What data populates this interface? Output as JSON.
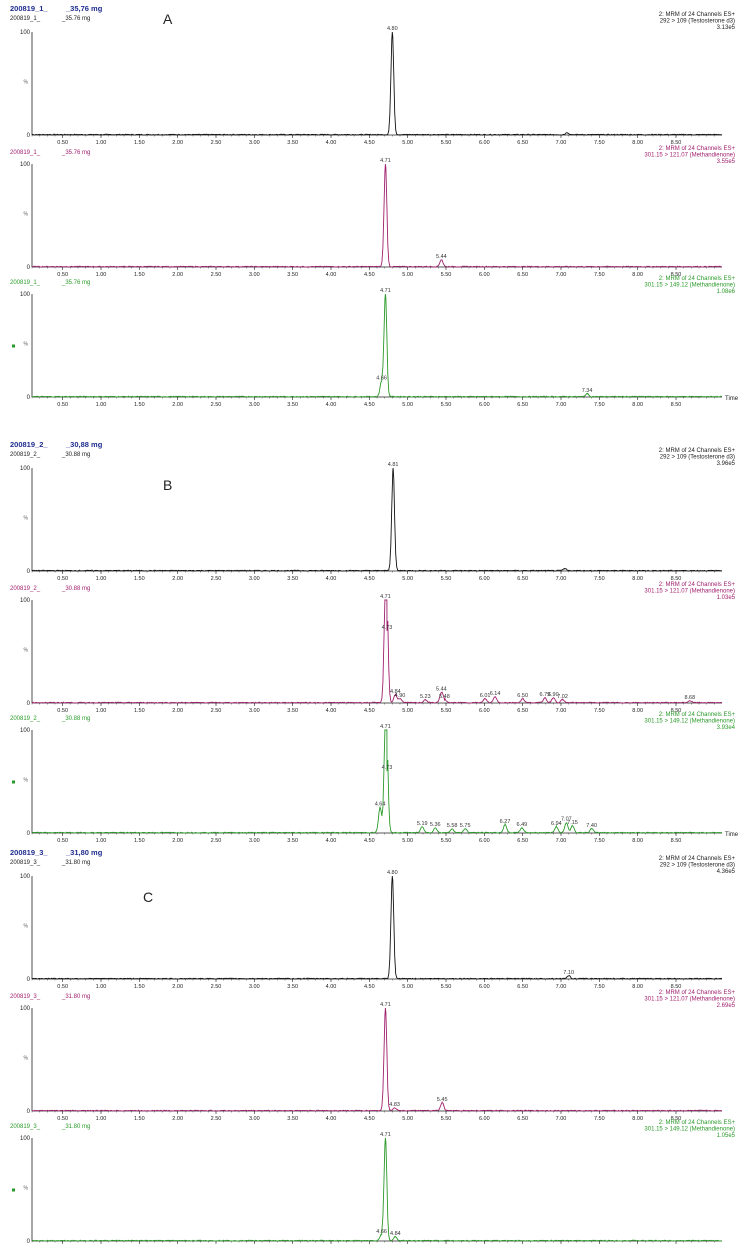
{
  "colors": {
    "black": "#111111",
    "magenta": "#a0206e",
    "green": "#2a9a2a",
    "title_blue": "#1f2d8f",
    "axis": "#222222"
  },
  "chart_data": [
    {
      "type": "line",
      "panel": "A",
      "sample": "200819_1_",
      "sample_mass": "_35,76 mg",
      "x_ticks": [
        "0.50",
        "1.00",
        "1.50",
        "2.00",
        "2.50",
        "3.00",
        "3.50",
        "4.00",
        "4.50",
        "5.00",
        "5.50",
        "6.00",
        "6.50",
        "7.00",
        "7.50",
        "8.00",
        "8.50"
      ],
      "xlim": [
        0.1,
        9.1
      ],
      "ylim": [
        0,
        100
      ],
      "xlabel": "Time",
      "traces": [
        {
          "header_left": "200819_1_",
          "header_mass": "_35.76 mg",
          "info": [
            "2: MRM of 24 Channels ES+",
            "292 > 109 (Testosterone d3)",
            "3.13e5"
          ],
          "color": "black",
          "peaks": [
            {
              "x": 4.8,
              "y": 100,
              "label": "4.80"
            },
            {
              "x": 7.08,
              "y": 2
            }
          ]
        },
        {
          "header_left": "200819_1_",
          "header_mass": "_35.76 mg",
          "info": [
            "2: MRM of 24 Channels ES+",
            "301.15 > 121.07 (Methandienone)",
            "3.55e5"
          ],
          "color": "magenta",
          "peaks": [
            {
              "x": 4.71,
              "y": 100,
              "label": "4.71"
            },
            {
              "x": 5.44,
              "y": 7,
              "label": "5.44"
            }
          ]
        },
        {
          "header_left": "200819_1_",
          "header_mass": "_35.76 mg",
          "info": [
            "2: MRM of 24 Channels ES+",
            "301.15 > 149.12 (Methandienone)",
            "1.08e6"
          ],
          "color": "green",
          "peaks": [
            {
              "x": 4.71,
              "y": 100,
              "label": "4.71"
            },
            {
              "x": 4.66,
              "y": 15,
              "label": "4.66"
            },
            {
              "x": 7.34,
              "y": 3,
              "label": "7.34"
            }
          ]
        }
      ]
    },
    {
      "type": "line",
      "panel": "B",
      "sample": "200819_2_",
      "sample_mass": "_30,88 mg",
      "x_ticks": [
        "0.50",
        "1.00",
        "1.50",
        "2.00",
        "2.50",
        "3.00",
        "3.50",
        "4.00",
        "4.50",
        "5.00",
        "5.50",
        "6.00",
        "6.50",
        "7.00",
        "7.50",
        "8.00",
        "8.50"
      ],
      "xlim": [
        0.1,
        9.1
      ],
      "ylim": [
        0,
        100
      ],
      "xlabel": "Time",
      "traces": [
        {
          "header_left": "200819_2_",
          "header_mass": "_30.88 mg",
          "info": [
            "2: MRM of 24 Channels ES+",
            "292 > 109 (Testosterone d3)",
            "3.96e5"
          ],
          "color": "black",
          "peaks": [
            {
              "x": 4.81,
              "y": 100,
              "label": "4.81"
            },
            {
              "x": 7.05,
              "y": 2
            }
          ]
        },
        {
          "header_left": "200819_2_",
          "header_mass": "_30.88 mg",
          "info": [
            "2: MRM of 24 Channels ES+",
            "301.15 > 121.07 (Methandienone)",
            "1.03e5"
          ],
          "color": "magenta",
          "peaks": [
            {
              "x": 4.71,
              "y": 100,
              "label": "4.71"
            },
            {
              "x": 4.73,
              "y": 70,
              "label": "4.73"
            },
            {
              "x": 4.84,
              "y": 8,
              "label": "4.84"
            },
            {
              "x": 4.9,
              "y": 4,
              "label": "4.90"
            },
            {
              "x": 5.23,
              "y": 3,
              "label": "5.23"
            },
            {
              "x": 5.44,
              "y": 10,
              "label": "5.44"
            },
            {
              "x": 5.48,
              "y": 3,
              "label": "5.48"
            },
            {
              "x": 6.01,
              "y": 4,
              "label": "6.01"
            },
            {
              "x": 6.14,
              "y": 6,
              "label": "6.14"
            },
            {
              "x": 6.5,
              "y": 4,
              "label": "6.50"
            },
            {
              "x": 6.79,
              "y": 5,
              "label": "6.79"
            },
            {
              "x": 6.9,
              "y": 5,
              "label": "6.90"
            },
            {
              "x": 7.02,
              "y": 3,
              "label": "7.02"
            },
            {
              "x": 8.68,
              "y": 2,
              "label": "8.68"
            }
          ]
        },
        {
          "header_left": "200819_2_",
          "header_mass": "_30.88 mg",
          "info": [
            "2: MRM of 24 Channels ES+",
            "301.15 > 149.12 (Methandienone)",
            "3.93e4"
          ],
          "color": "green",
          "peaks": [
            {
              "x": 4.71,
              "y": 100,
              "label": "4.71"
            },
            {
              "x": 4.73,
              "y": 60,
              "label": "4.73"
            },
            {
              "x": 4.64,
              "y": 25,
              "label": "4.64"
            },
            {
              "x": 5.19,
              "y": 6,
              "label": "5.19"
            },
            {
              "x": 5.36,
              "y": 5,
              "label": "5.36"
            },
            {
              "x": 5.58,
              "y": 4,
              "label": "5.58"
            },
            {
              "x": 5.75,
              "y": 4,
              "label": "5.75"
            },
            {
              "x": 6.27,
              "y": 8,
              "label": "6.27"
            },
            {
              "x": 6.49,
              "y": 5,
              "label": "6.49"
            },
            {
              "x": 6.94,
              "y": 6,
              "label": "6.94"
            },
            {
              "x": 7.07,
              "y": 10,
              "label": "7.07"
            },
            {
              "x": 7.15,
              "y": 7,
              "label": "7.15"
            },
            {
              "x": 7.4,
              "y": 4,
              "label": "7.40"
            }
          ]
        }
      ]
    },
    {
      "type": "line",
      "panel": "C",
      "sample": "200819_3_",
      "sample_mass": "_31,80 mg",
      "x_ticks": [
        "0.50",
        "1.00",
        "1.50",
        "2.00",
        "2.50",
        "3.00",
        "3.50",
        "4.00",
        "4.50",
        "5.00",
        "5.50",
        "6.00",
        "6.50",
        "7.00",
        "7.50",
        "8.00",
        "8.50"
      ],
      "xlim": [
        0.1,
        9.1
      ],
      "ylim": [
        0,
        100
      ],
      "xlabel": "",
      "traces": [
        {
          "header_left": "200819_3_",
          "header_mass": "_31.80 mg",
          "info": [
            "2: MRM of 24 Channels ES+",
            "292 > 109 (Testosterone d3)",
            "4.36e5"
          ],
          "color": "black",
          "peaks": [
            {
              "x": 4.8,
              "y": 100,
              "label": "4.80"
            },
            {
              "x": 7.1,
              "y": 3,
              "label": "7.10"
            }
          ]
        },
        {
          "header_left": "200819_3_",
          "header_mass": "_31.80 mg",
          "info": [
            "2: MRM of 24 Channels ES+",
            "301.15 > 121.07 (Methandienone)",
            "2.69e5"
          ],
          "color": "magenta",
          "peaks": [
            {
              "x": 4.71,
              "y": 100,
              "label": "4.71"
            },
            {
              "x": 4.83,
              "y": 3,
              "label": "4.83"
            },
            {
              "x": 5.45,
              "y": 8,
              "label": "5.45"
            }
          ]
        },
        {
          "header_left": "200819_3_",
          "header_mass": "_31.80 mg",
          "info": [
            "2: MRM of 24 Channels ES+",
            "301.15 > 149.12 (Methandienone)",
            "1.05e5"
          ],
          "color": "green",
          "peaks": [
            {
              "x": 4.71,
              "y": 100,
              "label": "4.71"
            },
            {
              "x": 4.66,
              "y": 6,
              "label": "4.66"
            },
            {
              "x": 4.84,
              "y": 4,
              "label": "4.84"
            }
          ]
        }
      ]
    }
  ]
}
